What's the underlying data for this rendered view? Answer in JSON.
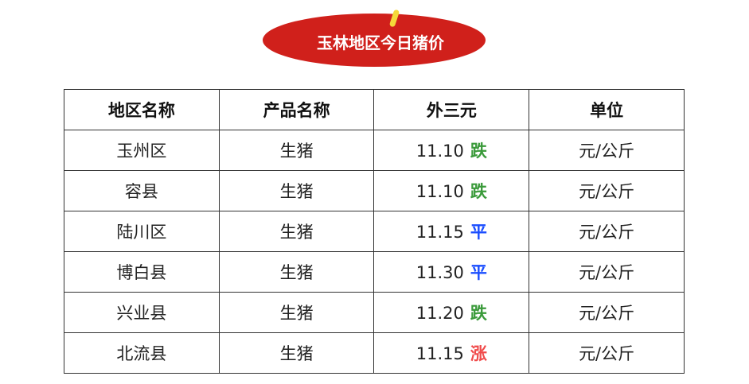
{
  "banner": {
    "title": "玉林地区今日猪价"
  },
  "table": {
    "headers": [
      "地区名称",
      "产品名称",
      "外三元",
      "单位"
    ],
    "rows": [
      {
        "region": "玉州区",
        "product": "生猪",
        "price": "11.10",
        "trend": "跌",
        "trend_color": "#3a9a3a",
        "unit": "元/公斤"
      },
      {
        "region": "容县",
        "product": "生猪",
        "price": "11.10",
        "trend": "跌",
        "trend_color": "#3a9a3a",
        "unit": "元/公斤"
      },
      {
        "region": "陆川区",
        "product": "生猪",
        "price": "11.15",
        "trend": "平",
        "trend_color": "#1a4dff",
        "unit": "元/公斤"
      },
      {
        "region": "博白县",
        "product": "生猪",
        "price": "11.30",
        "trend": "平",
        "trend_color": "#1a4dff",
        "unit": "元/公斤"
      },
      {
        "region": "兴业县",
        "product": "生猪",
        "price": "11.20",
        "trend": "跌",
        "trend_color": "#3a9a3a",
        "unit": "元/公斤"
      },
      {
        "region": "北流县",
        "product": "生猪",
        "price": "11.15",
        "trend": "涨",
        "trend_color": "#f04a4a",
        "unit": "元/公斤"
      }
    ]
  }
}
